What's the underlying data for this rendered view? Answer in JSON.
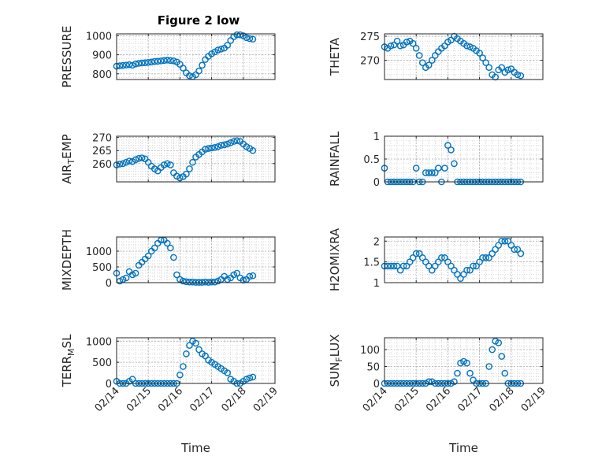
{
  "figure": {
    "title": "Figure 2 low",
    "marker_color": "#0072BD",
    "axis_color": "#262626",
    "grid_color": "#c8c8c8"
  },
  "chart_data": [
    {
      "id": "pressure",
      "type": "scatter",
      "ylabel": "PRESSURE",
      "xlabel": "",
      "xlim": [
        0,
        5
      ],
      "ylim": [
        770,
        1010
      ],
      "yticks": [
        800,
        900,
        1000
      ],
      "ytick_labels": [
        "800",
        "900",
        "1000"
      ],
      "xticks": [
        0,
        1,
        2,
        3,
        4,
        5
      ],
      "xtick_labels": [],
      "grid": true,
      "x": [
        0.0,
        0.1,
        0.2,
        0.3,
        0.4,
        0.5,
        0.6,
        0.7,
        0.8,
        0.9,
        1.0,
        1.1,
        1.2,
        1.3,
        1.4,
        1.5,
        1.6,
        1.7,
        1.8,
        1.9,
        2.0,
        2.1,
        2.2,
        2.3,
        2.4,
        2.5,
        2.6,
        2.7,
        2.8,
        2.9,
        3.0,
        3.1,
        3.2,
        3.3,
        3.4,
        3.5,
        3.6,
        3.7,
        3.8,
        3.9,
        4.0,
        4.1,
        4.2,
        4.3
      ],
      "y": [
        840,
        842,
        844,
        846,
        848,
        845,
        852,
        855,
        857,
        858,
        860,
        862,
        865,
        866,
        868,
        870,
        872,
        870,
        868,
        862,
        850,
        830,
        805,
        790,
        785,
        795,
        815,
        845,
        875,
        892,
        905,
        915,
        925,
        930,
        935,
        950,
        975,
        995,
        1005,
        1005,
        1000,
        990,
        985,
        982
      ]
    },
    {
      "id": "theta",
      "type": "scatter",
      "ylabel": "THETA",
      "xlabel": "",
      "xlim": [
        0,
        5
      ],
      "ylim": [
        266,
        275.5
      ],
      "yticks": [
        270,
        275
      ],
      "ytick_labels": [
        "270",
        "275"
      ],
      "xticks": [
        0,
        1,
        2,
        3,
        4,
        5
      ],
      "xtick_labels": [],
      "grid": true,
      "x": [
        0.0,
        0.1,
        0.2,
        0.3,
        0.4,
        0.5,
        0.6,
        0.7,
        0.8,
        0.9,
        1.0,
        1.1,
        1.2,
        1.3,
        1.4,
        1.5,
        1.6,
        1.7,
        1.8,
        1.9,
        2.0,
        2.1,
        2.2,
        2.3,
        2.4,
        2.5,
        2.6,
        2.7,
        2.8,
        2.9,
        3.0,
        3.1,
        3.2,
        3.3,
        3.4,
        3.5,
        3.6,
        3.7,
        3.8,
        3.9,
        4.0,
        4.1,
        4.2,
        4.3
      ],
      "y": [
        272.8,
        272.5,
        273.0,
        273.2,
        274.0,
        273.0,
        273.2,
        273.8,
        274.0,
        273.5,
        272.5,
        271.0,
        269.5,
        268.5,
        269.0,
        270.0,
        271.0,
        271.8,
        272.5,
        273.0,
        273.8,
        274.2,
        275.0,
        274.5,
        274.0,
        273.5,
        273.0,
        272.8,
        272.5,
        272.0,
        271.5,
        270.5,
        269.5,
        268.5,
        267.0,
        266.5,
        268.0,
        268.5,
        267.5,
        268.0,
        268.2,
        267.5,
        267.0,
        266.8
      ]
    },
    {
      "id": "air_temp",
      "type": "scatter",
      "ylabel": "AIR_TEMP",
      "xlabel": "",
      "xlim": [
        0,
        5
      ],
      "ylim": [
        253,
        270.5
      ],
      "yticks": [
        260,
        265,
        270
      ],
      "ytick_labels": [
        "260",
        "265",
        "270"
      ],
      "xticks": [
        0,
        1,
        2,
        3,
        4,
        5
      ],
      "xtick_labels": [],
      "grid": true,
      "x": [
        0.0,
        0.1,
        0.2,
        0.3,
        0.4,
        0.5,
        0.6,
        0.7,
        0.8,
        0.9,
        1.0,
        1.1,
        1.2,
        1.3,
        1.4,
        1.5,
        1.6,
        1.7,
        1.8,
        1.9,
        2.0,
        2.1,
        2.2,
        2.3,
        2.4,
        2.5,
        2.6,
        2.7,
        2.8,
        2.9,
        3.0,
        3.1,
        3.2,
        3.3,
        3.4,
        3.5,
        3.6,
        3.7,
        3.8,
        3.9,
        4.0,
        4.1,
        4.2,
        4.3
      ],
      "y": [
        259.5,
        259.8,
        260.0,
        260.5,
        261.0,
        260.8,
        261.5,
        262.0,
        262.2,
        261.8,
        260.5,
        259.0,
        258.0,
        257.2,
        258.5,
        259.5,
        260.0,
        259.5,
        256.5,
        255.2,
        254.5,
        255.0,
        256.0,
        258.0,
        260.5,
        262.5,
        263.5,
        264.5,
        265.5,
        265.8,
        266.0,
        266.2,
        266.5,
        267.0,
        267.2,
        267.5,
        268.0,
        268.5,
        268.8,
        268.5,
        267.5,
        266.5,
        265.8,
        265.0
      ]
    },
    {
      "id": "rainfall",
      "type": "scatter",
      "ylabel": "RAINFALL",
      "xlabel": "",
      "xlim": [
        0,
        5
      ],
      "ylim": [
        0,
        1
      ],
      "yticks": [
        0,
        0.5,
        1
      ],
      "ytick_labels": [
        "0",
        "0.5",
        "1"
      ],
      "xticks": [
        0,
        1,
        2,
        3,
        4,
        5
      ],
      "xtick_labels": [],
      "grid": true,
      "x": [
        0.0,
        0.1,
        0.2,
        0.3,
        0.4,
        0.5,
        0.6,
        0.7,
        0.8,
        0.9,
        1.0,
        1.1,
        1.2,
        1.3,
        1.4,
        1.5,
        1.6,
        1.7,
        1.8,
        1.9,
        2.0,
        2.1,
        2.2,
        2.3,
        2.4,
        2.5,
        2.6,
        2.7,
        2.8,
        2.9,
        3.0,
        3.1,
        3.2,
        3.3,
        3.4,
        3.5,
        3.6,
        3.7,
        3.8,
        3.9,
        4.0,
        4.1,
        4.2,
        4.3
      ],
      "y": [
        0.3,
        0.0,
        0.0,
        0.0,
        0.0,
        0.0,
        0.0,
        0.0,
        0.0,
        0.0,
        0.3,
        0.0,
        0.0,
        0.2,
        0.2,
        0.2,
        0.2,
        0.3,
        0.0,
        0.3,
        0.8,
        0.7,
        0.4,
        0.0,
        0.0,
        0.0,
        0.0,
        0.0,
        0.0,
        0.0,
        0.0,
        0.0,
        0.0,
        0.0,
        0.0,
        0.0,
        0.0,
        0.0,
        0.0,
        0.0,
        0.0,
        0.0,
        0.0,
        0.0
      ]
    },
    {
      "id": "mixdepth",
      "type": "scatter",
      "ylabel": "MIXDEPTH",
      "xlabel": "",
      "xlim": [
        0,
        5
      ],
      "ylim": [
        0,
        1450
      ],
      "yticks": [
        0,
        500,
        1000
      ],
      "ytick_labels": [
        "0",
        "500",
        "1000"
      ],
      "xticks": [
        0,
        1,
        2,
        3,
        4,
        5
      ],
      "xtick_labels": [],
      "grid": true,
      "x": [
        0.0,
        0.1,
        0.2,
        0.3,
        0.4,
        0.5,
        0.6,
        0.7,
        0.8,
        0.9,
        1.0,
        1.1,
        1.2,
        1.3,
        1.4,
        1.5,
        1.6,
        1.7,
        1.8,
        1.9,
        2.0,
        2.1,
        2.2,
        2.3,
        2.4,
        2.5,
        2.6,
        2.7,
        2.8,
        2.9,
        3.0,
        3.1,
        3.2,
        3.3,
        3.4,
        3.5,
        3.6,
        3.7,
        3.8,
        3.9,
        4.0,
        4.1,
        4.2,
        4.3
      ],
      "y": [
        300,
        50,
        100,
        150,
        350,
        250,
        300,
        550,
        650,
        750,
        850,
        1000,
        1100,
        1250,
        1350,
        1350,
        1250,
        1100,
        800,
        250,
        100,
        50,
        30,
        20,
        20,
        10,
        10,
        10,
        20,
        10,
        20,
        20,
        50,
        100,
        200,
        100,
        150,
        250,
        300,
        150,
        80,
        100,
        200,
        220
      ]
    },
    {
      "id": "h2omixra",
      "type": "scatter",
      "ylabel": "H2OMIXRA",
      "xlabel": "",
      "xlim": [
        0,
        5
      ],
      "ylim": [
        1,
        2.1
      ],
      "yticks": [
        1,
        1.5,
        2
      ],
      "ytick_labels": [
        "1",
        "1.5",
        "2"
      ],
      "xticks": [
        0,
        1,
        2,
        3,
        4,
        5
      ],
      "xtick_labels": [],
      "grid": true,
      "x": [
        0.0,
        0.1,
        0.2,
        0.3,
        0.4,
        0.5,
        0.6,
        0.7,
        0.8,
        0.9,
        1.0,
        1.1,
        1.2,
        1.3,
        1.4,
        1.5,
        1.6,
        1.7,
        1.8,
        1.9,
        2.0,
        2.1,
        2.2,
        2.3,
        2.4,
        2.5,
        2.6,
        2.7,
        2.8,
        2.9,
        3.0,
        3.1,
        3.2,
        3.3,
        3.4,
        3.5,
        3.6,
        3.7,
        3.8,
        3.9,
        4.0,
        4.1,
        4.2,
        4.3
      ],
      "y": [
        1.4,
        1.4,
        1.4,
        1.4,
        1.4,
        1.3,
        1.4,
        1.4,
        1.5,
        1.6,
        1.7,
        1.7,
        1.6,
        1.5,
        1.4,
        1.3,
        1.4,
        1.5,
        1.6,
        1.6,
        1.5,
        1.4,
        1.3,
        1.2,
        1.1,
        1.2,
        1.3,
        1.3,
        1.4,
        1.4,
        1.5,
        1.6,
        1.6,
        1.6,
        1.7,
        1.8,
        1.9,
        2.0,
        2.0,
        2.0,
        1.9,
        1.8,
        1.8,
        1.7
      ]
    },
    {
      "id": "terr_msl",
      "type": "scatter",
      "ylabel": "TERR_MSL",
      "xlabel": "Time",
      "xlim": [
        0,
        5
      ],
      "ylim": [
        0,
        1080
      ],
      "yticks": [
        0,
        500,
        1000
      ],
      "ytick_labels": [
        "0",
        "500",
        "1000"
      ],
      "xticks": [
        0,
        1,
        2,
        3,
        4,
        5
      ],
      "xtick_labels": [
        "02/14",
        "02/15",
        "02/16",
        "02/17",
        "02/18",
        "02/19"
      ],
      "grid": true,
      "x": [
        0.0,
        0.1,
        0.2,
        0.3,
        0.4,
        0.5,
        0.6,
        0.7,
        0.8,
        0.9,
        1.0,
        1.1,
        1.2,
        1.3,
        1.4,
        1.5,
        1.6,
        1.7,
        1.8,
        1.9,
        2.0,
        2.1,
        2.2,
        2.3,
        2.4,
        2.5,
        2.6,
        2.7,
        2.8,
        2.9,
        3.0,
        3.1,
        3.2,
        3.3,
        3.4,
        3.5,
        3.6,
        3.7,
        3.8,
        3.9,
        4.0,
        4.1,
        4.2,
        4.3
      ],
      "y": [
        50,
        0,
        0,
        0,
        50,
        100,
        0,
        0,
        0,
        0,
        0,
        0,
        0,
        0,
        0,
        0,
        0,
        0,
        0,
        0,
        200,
        400,
        700,
        900,
        1000,
        950,
        800,
        700,
        650,
        550,
        500,
        450,
        400,
        350,
        300,
        250,
        100,
        50,
        0,
        0,
        50,
        100,
        130,
        150
      ]
    },
    {
      "id": "sun_flux",
      "type": "scatter",
      "ylabel": "SUN_FLUX",
      "xlabel": "Time",
      "xlim": [
        0,
        5
      ],
      "ylim": [
        0,
        135
      ],
      "yticks": [
        0,
        50,
        100
      ],
      "ytick_labels": [
        "0",
        "50",
        "100"
      ],
      "xticks": [
        0,
        1,
        2,
        3,
        4,
        5
      ],
      "xtick_labels": [
        "02/14",
        "02/15",
        "02/16",
        "02/17",
        "02/18",
        "02/19"
      ],
      "grid": true,
      "x": [
        0.0,
        0.1,
        0.2,
        0.3,
        0.4,
        0.5,
        0.6,
        0.7,
        0.8,
        0.9,
        1.0,
        1.1,
        1.2,
        1.3,
        1.4,
        1.5,
        1.6,
        1.7,
        1.8,
        1.9,
        2.0,
        2.1,
        2.2,
        2.3,
        2.4,
        2.5,
        2.6,
        2.7,
        2.8,
        2.9,
        3.0,
        3.1,
        3.2,
        3.3,
        3.4,
        3.5,
        3.6,
        3.7,
        3.8,
        3.9,
        4.0,
        4.1,
        4.2,
        4.3
      ],
      "y": [
        0,
        0,
        0,
        0,
        0,
        0,
        0,
        0,
        0,
        0,
        0,
        0,
        0,
        0,
        5,
        5,
        0,
        0,
        0,
        0,
        0,
        0,
        5,
        30,
        60,
        65,
        60,
        30,
        10,
        0,
        0,
        0,
        0,
        50,
        100,
        125,
        120,
        80,
        30,
        0,
        0,
        0,
        0,
        0
      ]
    }
  ]
}
